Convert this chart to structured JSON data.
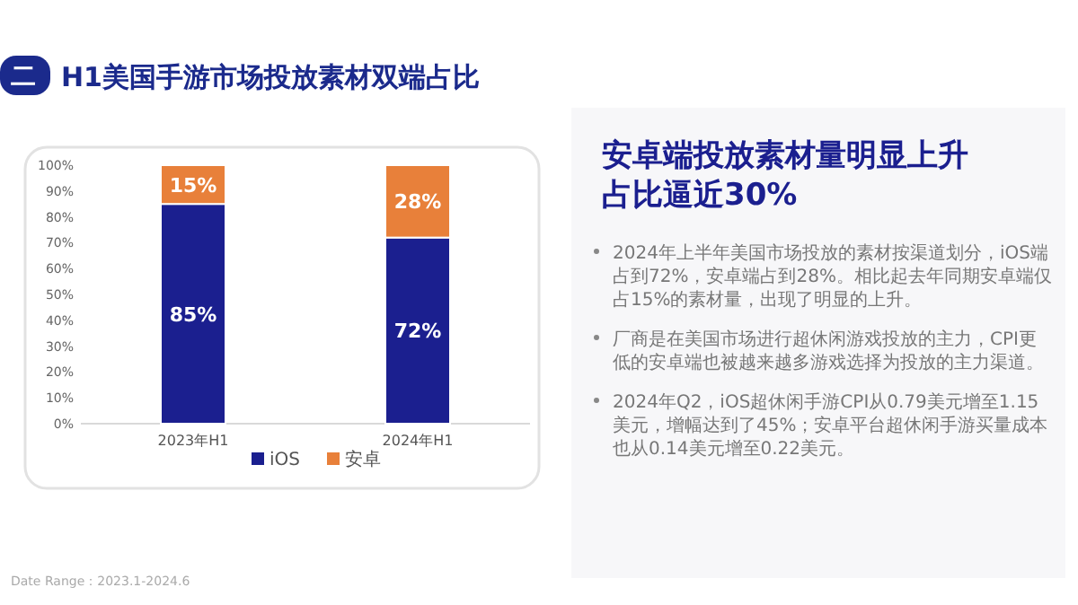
{
  "chart_data": {
    "type": "bar",
    "stacked": true,
    "title": "H1美国手游市场投放素材双端占比",
    "categories": [
      "2023年H1",
      "2024年H1"
    ],
    "series": [
      {
        "name": "iOS",
        "color": "#1b1f8f",
        "values": [
          85,
          72
        ],
        "value_labels": [
          "85%",
          "72%"
        ]
      },
      {
        "name": "安卓",
        "color": "#e8803a",
        "values": [
          15,
          28
        ],
        "value_labels": [
          "15%",
          "28%"
        ]
      }
    ],
    "ylim": [
      0,
      100
    ],
    "yticks": [
      {
        "value": 0,
        "label": "0%"
      },
      {
        "value": 10,
        "label": "10%"
      },
      {
        "value": 20,
        "label": "20%"
      },
      {
        "value": 30,
        "label": "30%"
      },
      {
        "value": 40,
        "label": "40%"
      },
      {
        "value": 50,
        "label": "50%"
      },
      {
        "value": 60,
        "label": "60%"
      },
      {
        "value": 70,
        "label": "70%"
      },
      {
        "value": 80,
        "label": "80%"
      },
      {
        "value": 90,
        "label": "90%"
      },
      {
        "value": 100,
        "label": "100%"
      }
    ],
    "legend": "bottom",
    "grid": false,
    "annotations": [
      "二",
      "安卓端投放素材量明显上升占比逼近30%",
      "2024年上半年美国市场投放的素材按渠道划分，iOS端占到72%，安卓端占到28%。相比起去年同期安卓端仅占15%的素材量，出现了明显的上升。",
      "厂商是在美国市场进行超休闲游戏投放的主力，CPI更低的安卓端也被越来越多游戏选择为投放的主力渠道。",
      "2024年Q2，iOS超休闲手游CPI从0.79美元增至1.15美元，增幅达到了45%；安卓平台超休闲手游买量成本也从0.14美元增至0.22美元。",
      "Date Range：2023.1-2024.6"
    ]
  }
}
